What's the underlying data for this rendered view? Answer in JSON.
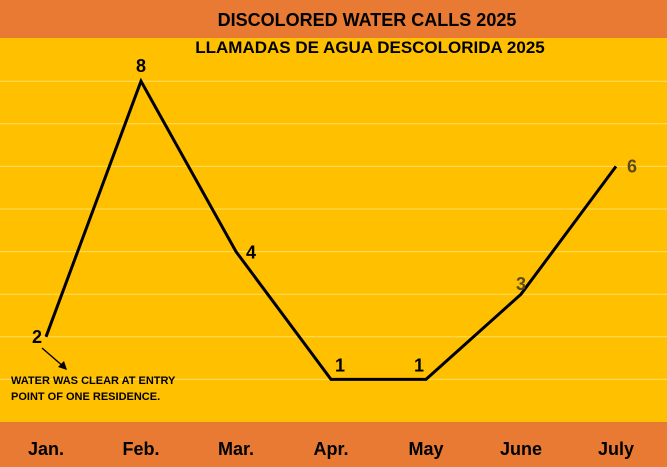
{
  "chart_data": {
    "type": "line",
    "title": "DISCOLORED WATER CALLS 2025",
    "subtitle": "LLAMADAS  DE AGUA  DESCOLORIDA 2025",
    "categories": [
      "Jan.",
      "Feb.",
      "Mar.",
      "Apr.",
      "May",
      "June",
      "July"
    ],
    "values": [
      2,
      8,
      4,
      1,
      1,
      3,
      6
    ],
    "data_labels": [
      "2",
      "8",
      "4",
      "1",
      "1",
      "3",
      "6"
    ],
    "ylim": [
      0,
      8
    ],
    "grid": true,
    "annotation": {
      "line1": "WATER WAS CLEAR AT ENTRY",
      "line2": "POINT OF ONE RESIDENCE."
    }
  },
  "colors": {
    "background": "#E87A34",
    "plot_area": "#FFC000",
    "gridline": "#FFDD66",
    "line": "#000000",
    "label_dark": "#000000",
    "label_muted": "#5A4A1E"
  }
}
